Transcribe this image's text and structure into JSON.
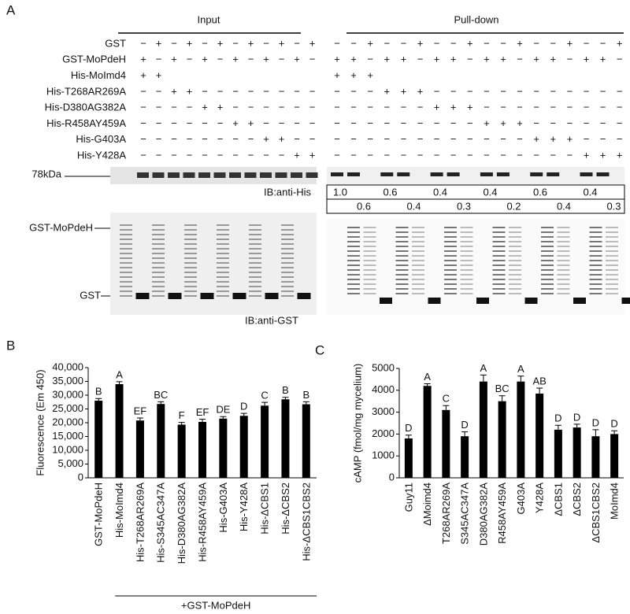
{
  "panel_labels": [
    "A",
    "B",
    "C"
  ],
  "blot": {
    "input_header": "Input",
    "pulldown_header": "Pull-down",
    "rows": [
      {
        "label": "GST",
        "input": [
          "−",
          "+",
          "−",
          "+",
          "−",
          "+",
          "−",
          "+",
          "−",
          "+",
          "−",
          "+"
        ],
        "pulldown": [
          "−",
          "−",
          "+",
          "−",
          "−",
          "+",
          "−",
          "−",
          "+",
          "−",
          "−",
          "+",
          "−",
          "−",
          "+",
          "−",
          "−",
          "+"
        ]
      },
      {
        "label": "GST-MoPdeH",
        "input": [
          "+",
          "−",
          "+",
          "−",
          "+",
          "−",
          "+",
          "−",
          "+",
          "−",
          "+",
          "−"
        ],
        "pulldown": [
          "+",
          "+",
          "−",
          "+",
          "+",
          "−",
          "+",
          "+",
          "−",
          "+",
          "+",
          "−",
          "+",
          "+",
          "−",
          "+",
          "+",
          "−"
        ]
      },
      {
        "label": "His-MoImd4",
        "input": [
          "+",
          "+",
          null,
          null,
          null,
          null,
          null,
          null,
          null,
          null,
          null,
          null
        ],
        "pulldown": [
          "+",
          "+",
          "+",
          null,
          null,
          null,
          null,
          null,
          null,
          null,
          null,
          null,
          null,
          null,
          null,
          null,
          null,
          null
        ]
      },
      {
        "label": "His-T268AR269A",
        "input": [
          "−",
          "−",
          "+",
          "+",
          "−",
          "−",
          "−",
          "−",
          "−",
          "−",
          "−",
          "−"
        ],
        "pulldown": [
          "−",
          "−",
          "−",
          "+",
          "+",
          "+",
          "−",
          "−",
          "−",
          "−",
          "−",
          "−",
          "−",
          "−",
          "−",
          "−",
          "−",
          "−"
        ]
      },
      {
        "label": "His-D380AG382A",
        "input": [
          "−",
          "−",
          "−",
          "−",
          "+",
          "+",
          "−",
          "−",
          "−",
          "−",
          "−",
          "−"
        ],
        "pulldown": [
          "−",
          "−",
          "−",
          "−",
          "−",
          "−",
          "+",
          "+",
          "+",
          "−",
          "−",
          "−",
          "−",
          "−",
          "−",
          "−",
          "−",
          "−"
        ]
      },
      {
        "label": "His-R458AY459A",
        "input": [
          "−",
          "−",
          "−",
          "−",
          "−",
          "−",
          "+",
          "+",
          "−",
          "−",
          "−",
          "−"
        ],
        "pulldown": [
          "−",
          "−",
          "−",
          "−",
          "−",
          "−",
          "−",
          "−",
          "−",
          "+",
          "+",
          "+",
          "−",
          "−",
          "−",
          "−",
          "−",
          "−"
        ]
      },
      {
        "label": "His-G403A",
        "input": [
          "−",
          "−",
          "−",
          "−",
          "−",
          "−",
          "−",
          "−",
          "+",
          "+",
          "−",
          "−"
        ],
        "pulldown": [
          "−",
          "−",
          "−",
          "−",
          "−",
          "−",
          "−",
          "−",
          "−",
          "−",
          "−",
          "−",
          "+",
          "+",
          "+",
          "−",
          "−",
          "−"
        ]
      },
      {
        "label": "His-Y428A",
        "input": [
          "−",
          "−",
          "−",
          "−",
          "−",
          "−",
          "−",
          "−",
          "−",
          "−",
          "+",
          "+"
        ],
        "pulldown": [
          "−",
          "−",
          "−",
          "−",
          "−",
          "−",
          "−",
          "−",
          "−",
          "−",
          "−",
          "−",
          "−",
          "−",
          "−",
          "+",
          "+",
          "+"
        ]
      }
    ],
    "marker_78": "78kDa",
    "ib_his": "IB:anti-His",
    "quant_row1": [
      "1.0",
      "0.6",
      "0.4",
      "0.4",
      "0.6",
      "0.4"
    ],
    "quant_row2": [
      "0.6",
      "0.4",
      "0.3",
      "0.2",
      "0.4",
      "0.3"
    ],
    "marker_gst_mopdeh": "GST-MoPdeH",
    "marker_gst": "GST",
    "ib_gst": "IB:anti-GST"
  },
  "chart_data": [
    {
      "type": "bar",
      "y_label": "Fluorescence (Em 450)",
      "group_label": "+GST-MoPdeH",
      "color": "#000000",
      "categories": [
        "GST-MoPdeH",
        "His-MoImd4",
        "His-T268AR269A",
        "His-S345AC347A",
        "His-D380AG382A",
        "His-R458AY459A",
        "His-G403A",
        "His-Y428A",
        "His-ΔCBS1",
        "His-ΔCBS2",
        "His-ΔCBS1CBS2"
      ],
      "values": [
        28000,
        34000,
        20800,
        26800,
        19300,
        20300,
        21500,
        22500,
        26200,
        28500,
        26700
      ],
      "errors": [
        800,
        900,
        900,
        800,
        800,
        1000,
        700,
        900,
        1200,
        700,
        900
      ],
      "letters": [
        "B",
        "A",
        "EF",
        "BC",
        "F",
        "EF",
        "DE",
        "D",
        "C",
        "B",
        "B"
      ],
      "ylim": [
        0,
        40000
      ],
      "yticks": [
        0,
        {
          "value": 5000,
          "label": "5,000"
        },
        {
          "value": 10000,
          "label": "10,000"
        },
        {
          "value": 15000,
          "label": "15,000"
        },
        {
          "value": 20000,
          "label": "20,000"
        },
        {
          "value": 25000,
          "label": "25,000"
        },
        {
          "value": 30000,
          "label": "30,000"
        },
        {
          "value": 35000,
          "label": "35,000"
        },
        {
          "value": 40000,
          "label": "40,000"
        }
      ]
    },
    {
      "type": "bar",
      "y_label": "cAMP (fmol/mg mycelium)",
      "color": "#000000",
      "categories": [
        "Guy11",
        "ΔMoimd4",
        "T268AR269A",
        "S345AC347A",
        "D380AG382A",
        "R458AY459A",
        "G403A",
        "Y428A",
        "ΔCBS1",
        "ΔCBS2",
        "ΔCBS1CBS2",
        "MoImd4"
      ],
      "values": [
        1800,
        4200,
        3100,
        1900,
        4400,
        3500,
        4400,
        3850,
        2200,
        2300,
        1900,
        2000
      ],
      "errors": [
        150,
        100,
        200,
        200,
        300,
        250,
        250,
        250,
        200,
        150,
        300,
        150
      ],
      "letters": [
        "D",
        "A",
        "C",
        "D",
        "A",
        "BC",
        "A",
        "AB",
        "D",
        "D",
        "D",
        "D"
      ],
      "ylim": [
        0,
        5000
      ],
      "yticks": [
        0,
        1000,
        2000,
        3000,
        4000,
        5000
      ]
    }
  ]
}
